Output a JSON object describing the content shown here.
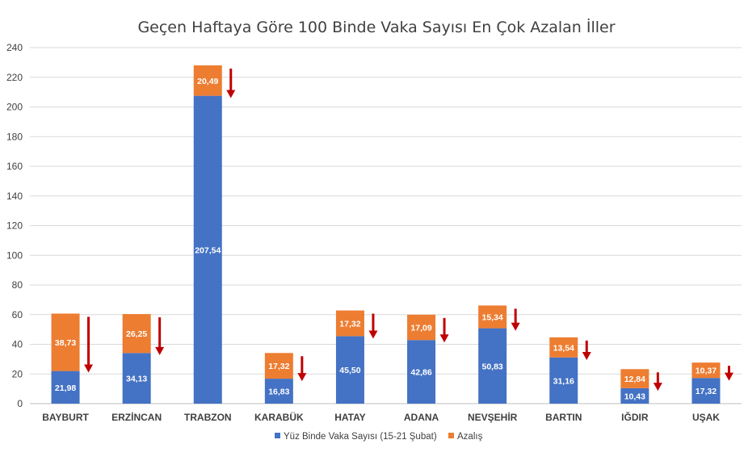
{
  "chart_data": {
    "type": "bar",
    "stacked": true,
    "title": "Geçen Haftaya Göre 100 Binde Vaka Sayısı En Çok Azalan İller",
    "xlabel": "",
    "ylabel": "",
    "ylim": [
      0,
      240
    ],
    "yticks": [
      0,
      20,
      40,
      60,
      80,
      100,
      120,
      140,
      160,
      180,
      200,
      220,
      240
    ],
    "grid": true,
    "legend_position": "bottom",
    "categories": [
      "BAYBURT",
      "ERZİNCAN",
      "TRABZON",
      "KARABÜK",
      "HATAY",
      "ADANA",
      "NEVŞEHİR",
      "BARTIN",
      "IĞDIR",
      "UŞAK"
    ],
    "series": [
      {
        "name": "Yüz Binde Vaka Sayısı (15-21 Şubat)",
        "color": "#4472C4",
        "values": [
          21.98,
          34.13,
          207.54,
          16.83,
          45.5,
          42.86,
          50.83,
          31.16,
          10.43,
          17.32
        ],
        "labels": [
          "21,98",
          "34,13",
          "207,54",
          "16,83",
          "45,50",
          "42,86",
          "50,83",
          "31,16",
          "10,43",
          "17,32"
        ]
      },
      {
        "name": "Azalış",
        "color": "#ED7D31",
        "values": [
          38.73,
          26.25,
          20.49,
          17.32,
          17.32,
          17.09,
          15.34,
          13.54,
          12.84,
          10.37
        ],
        "labels": [
          "38,73",
          "26,25",
          "20,49",
          "17,32",
          "17,32",
          "17,09",
          "15,34",
          "13,54",
          "12,84",
          "10,37"
        ]
      }
    ],
    "annotations": {
      "type": "down-arrow-icon",
      "color": "#C00000"
    }
  }
}
